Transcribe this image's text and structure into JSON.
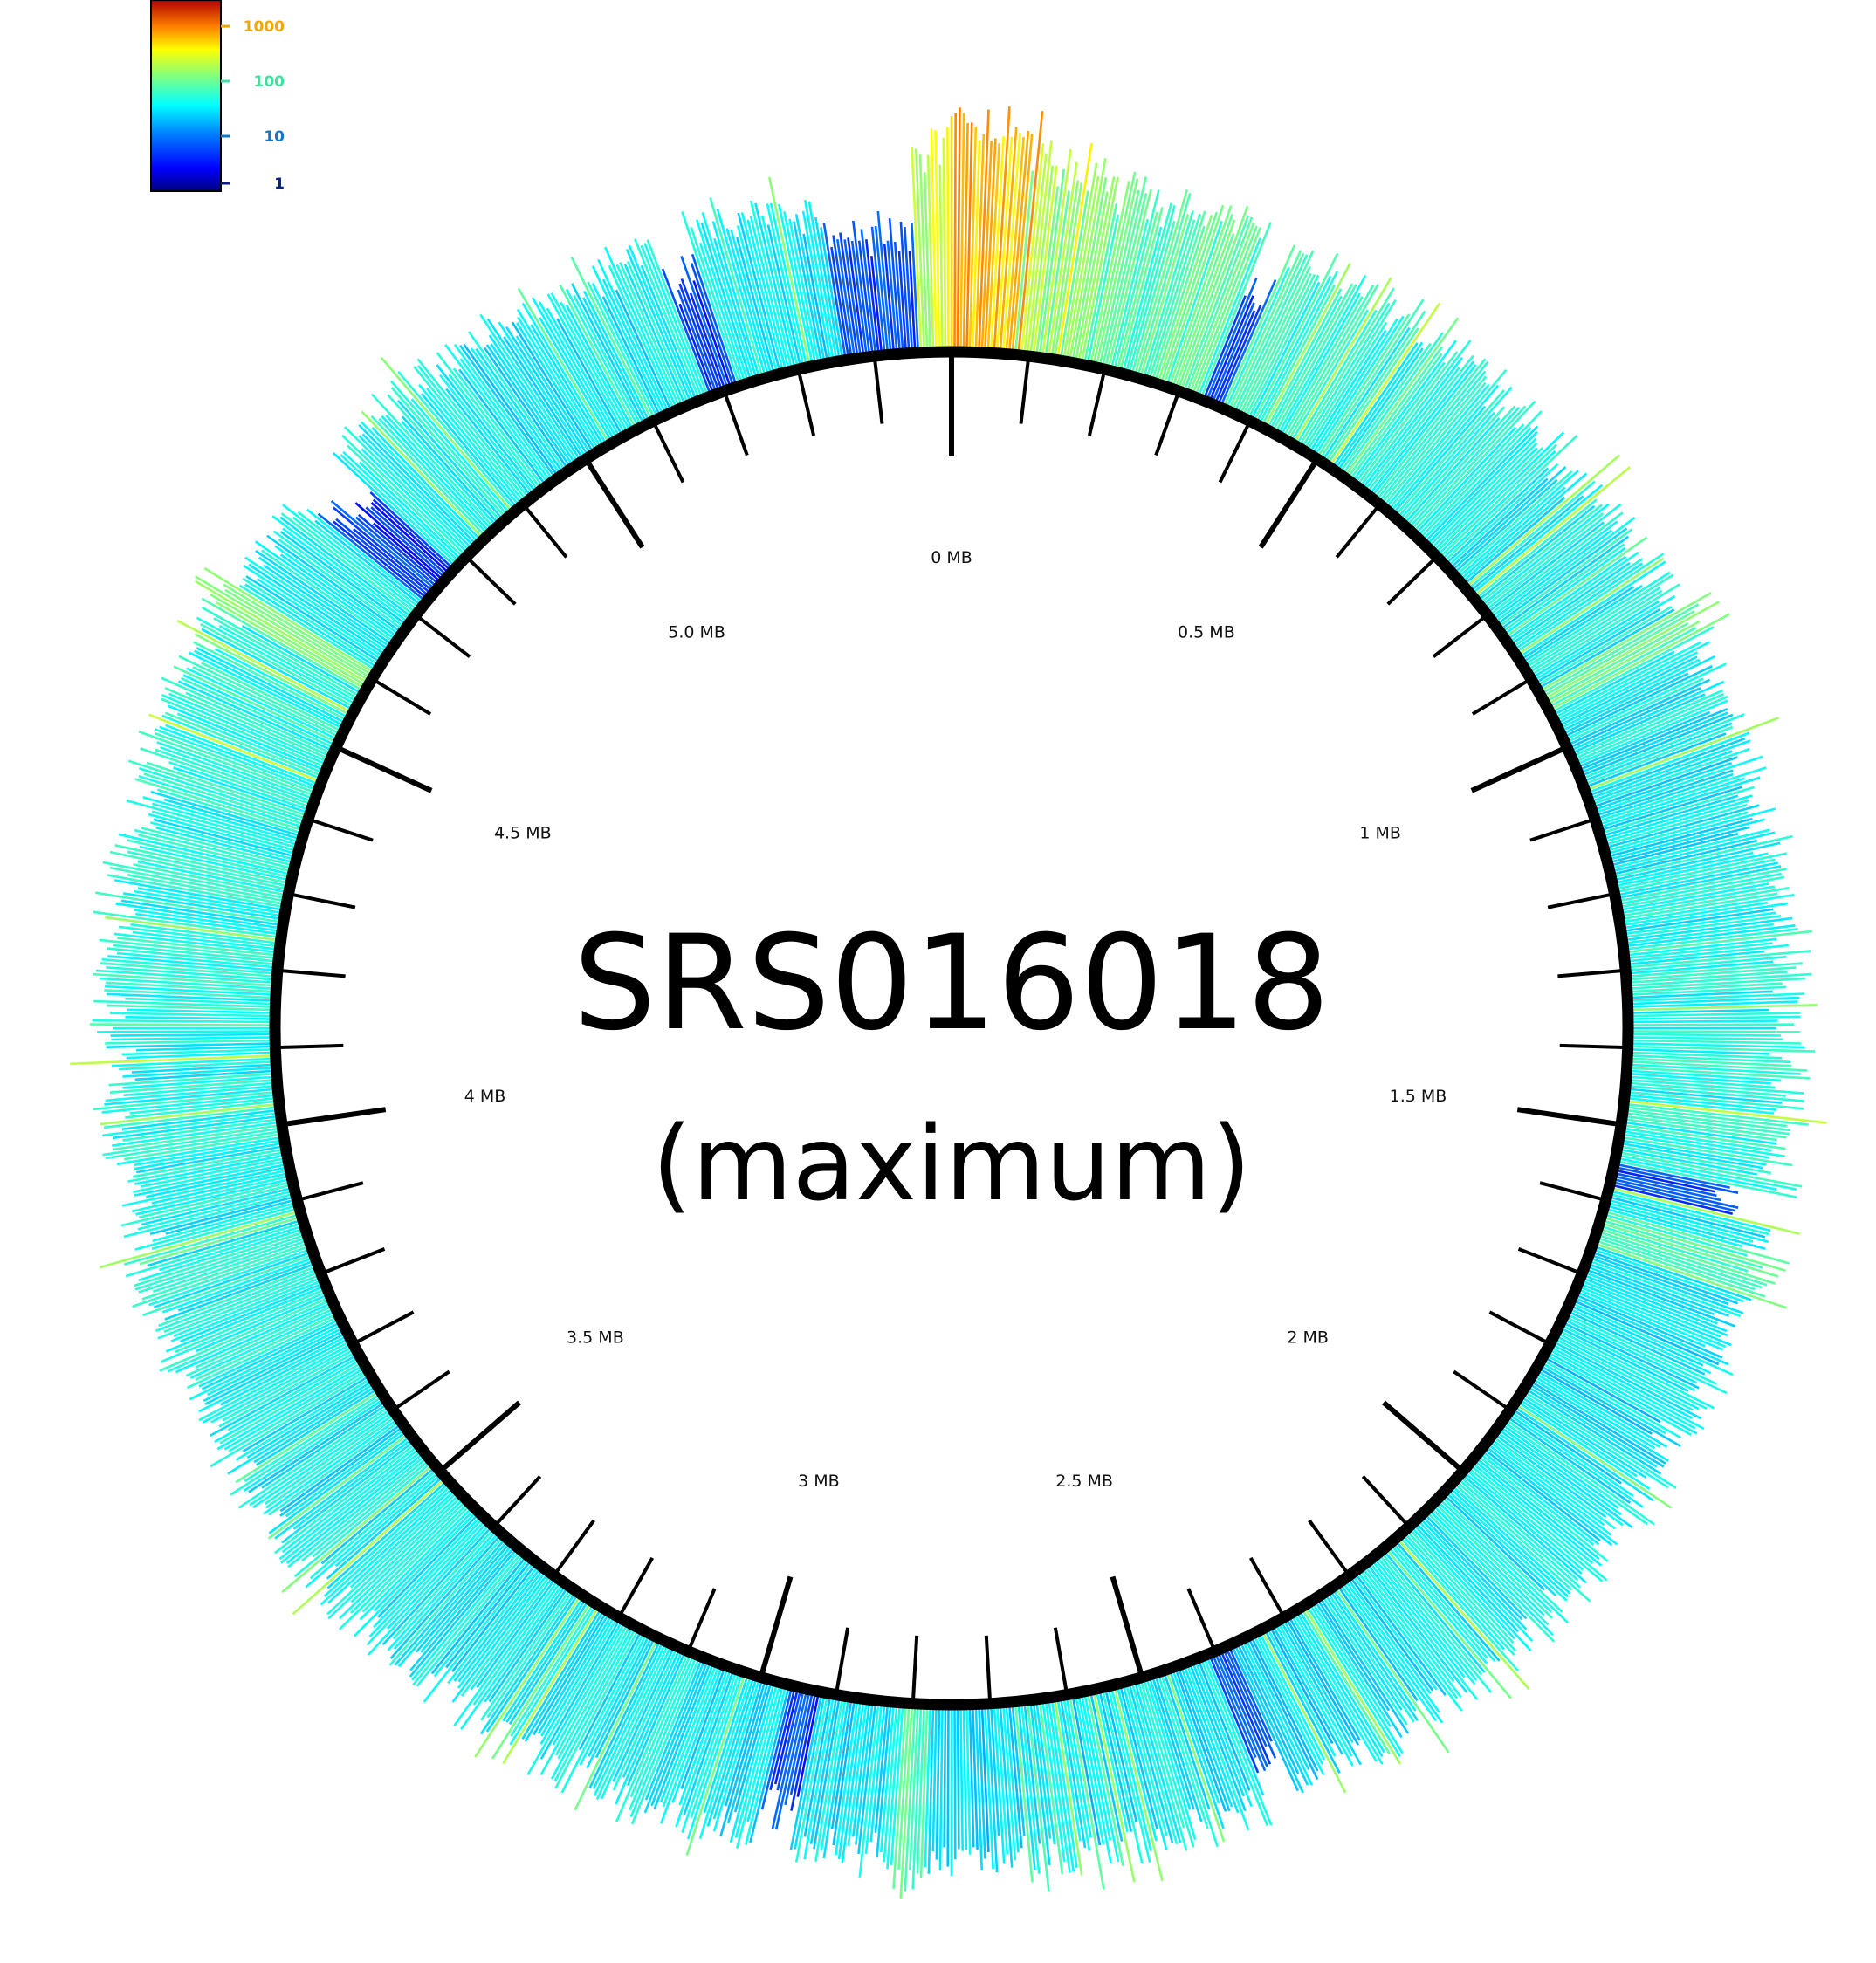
{
  "chart_data": {
    "type": "circular-histogram",
    "title": "SRS016018",
    "subtitle": "(maximum)",
    "genome_length_mb": 5.5,
    "axis_labels": [
      "0 MB",
      "0.5 MB",
      "1 MB",
      "1.5 MB",
      "2 MB",
      "2.5 MB",
      "3 MB",
      "3.5 MB",
      "4 MB",
      "4.5 MB",
      "5.0 MB"
    ],
    "axis_label_positions_mb": [
      0,
      0.5,
      1,
      1.5,
      2,
      2.5,
      3,
      3.5,
      4,
      4.5,
      5.0
    ],
    "major_tick_step_mb": 0.5,
    "minor_tick_step_mb": 0.1,
    "color_scale": {
      "type": "log",
      "range": [
        1,
        3000
      ],
      "ticks": [
        "1000",
        "100",
        "10",
        "1"
      ],
      "tick_values": [
        1000,
        100,
        10,
        1
      ],
      "tick_colors": [
        "#f0a800",
        "#40e0a0",
        "#1478c8",
        "#08208a"
      ],
      "gradient": [
        "#00007f",
        "#0000ff",
        "#0080ff",
        "#00ffff",
        "#80ff80",
        "#ffff00",
        "#ff8000",
        "#ff0000",
        "#7f0000"
      ]
    },
    "coverage_profile_mb": [
      [
        0.0,
        320
      ],
      [
        0.1,
        180
      ],
      [
        0.2,
        80
      ],
      [
        0.3,
        90
      ],
      [
        0.4,
        60
      ],
      [
        0.5,
        55
      ],
      [
        0.6,
        45
      ],
      [
        0.7,
        40
      ],
      [
        0.8,
        45
      ],
      [
        0.9,
        40
      ],
      [
        1.0,
        38
      ],
      [
        1.1,
        35
      ],
      [
        1.2,
        40
      ],
      [
        1.3,
        45
      ],
      [
        1.4,
        48
      ],
      [
        1.5,
        50
      ],
      [
        1.6,
        40
      ],
      [
        1.7,
        35
      ],
      [
        1.8,
        30
      ],
      [
        1.9,
        35
      ],
      [
        2.0,
        38
      ],
      [
        2.1,
        40
      ],
      [
        2.2,
        35
      ],
      [
        2.3,
        30
      ],
      [
        2.4,
        32
      ],
      [
        2.5,
        35
      ],
      [
        2.6,
        30
      ],
      [
        2.7,
        28
      ],
      [
        2.8,
        32
      ],
      [
        2.9,
        35
      ],
      [
        3.0,
        30
      ],
      [
        3.1,
        40
      ],
      [
        3.2,
        38
      ],
      [
        3.3,
        35
      ],
      [
        3.4,
        40
      ],
      [
        3.5,
        38
      ],
      [
        3.6,
        35
      ],
      [
        3.7,
        40
      ],
      [
        3.8,
        45
      ],
      [
        3.9,
        42
      ],
      [
        4.0,
        48
      ],
      [
        4.1,
        45
      ],
      [
        4.2,
        50
      ],
      [
        4.3,
        45
      ],
      [
        4.4,
        50
      ],
      [
        4.5,
        55
      ],
      [
        4.6,
        45
      ],
      [
        4.7,
        40
      ],
      [
        4.8,
        45
      ],
      [
        4.9,
        40
      ],
      [
        5.0,
        30
      ],
      [
        5.1,
        35
      ],
      [
        5.2,
        40
      ],
      [
        5.3,
        35
      ],
      [
        5.4,
        15
      ],
      [
        5.5,
        320
      ]
    ],
    "low_coverage_regions_mb": [
      [
        5.36,
        5.46
      ],
      [
        5.18,
        5.22
      ],
      [
        4.72,
        4.78
      ],
      [
        2.92,
        2.96
      ],
      [
        1.55,
        1.58
      ],
      [
        0.33,
        0.36
      ],
      [
        2.38,
        2.41
      ]
    ],
    "high_coverage_regions_mb": [
      [
        0.0,
        0.08
      ],
      [
        0.92,
        0.95
      ],
      [
        1.62,
        1.66
      ],
      [
        2.78,
        2.81
      ],
      [
        4.58,
        4.61
      ]
    ]
  }
}
